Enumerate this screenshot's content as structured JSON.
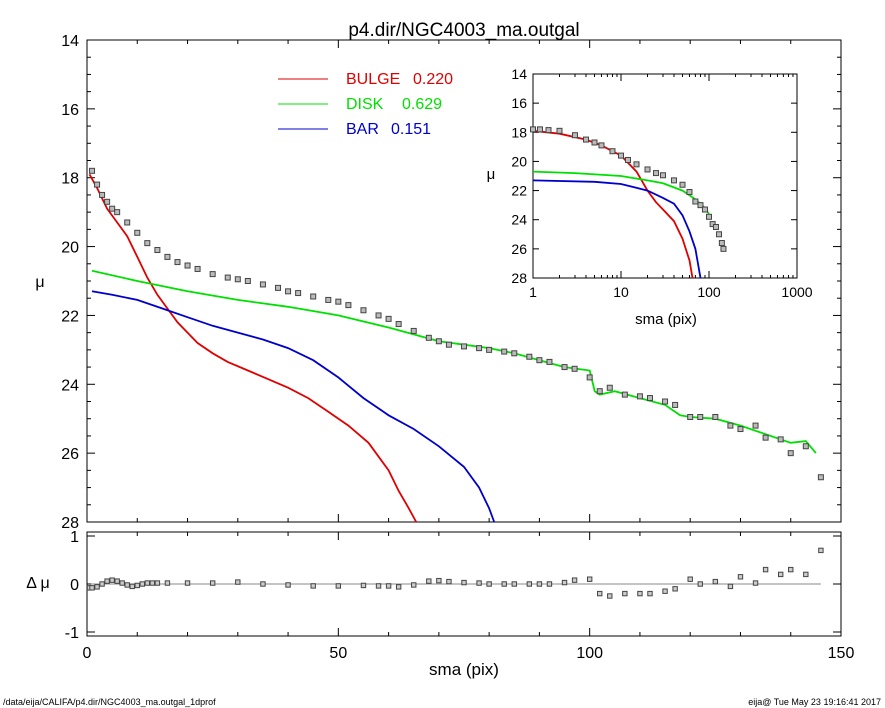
{
  "chart_data": [
    {
      "type": "line",
      "panel": "main",
      "title": "p4.dir/NGC4003_ma.outgal",
      "xlabel": "",
      "ylabel": "μ",
      "xlim": [
        0,
        150
      ],
      "ylim": [
        28,
        14
      ],
      "y_inverted": true,
      "yticks": [
        "14",
        "16",
        "18",
        "20",
        "22",
        "24",
        "26",
        "28"
      ],
      "legend": [
        {
          "name": "BULGE",
          "value": "0.220",
          "color": "#e00000"
        },
        {
          "name": "DISK",
          "value": "0.629",
          "color": "#00e000"
        },
        {
          "name": "BAR",
          "value": "0.151",
          "color": "#0000cc"
        }
      ],
      "series": [
        {
          "name": "BULGE",
          "color": "#e00000",
          "x": [
            0.5,
            2,
            4,
            6,
            8,
            10,
            12,
            14,
            16,
            18,
            20,
            22,
            25,
            28,
            32,
            36,
            40,
            44,
            48,
            52,
            56,
            60,
            62,
            64,
            65.5
          ],
          "y": [
            17.9,
            18.3,
            18.9,
            19.3,
            19.7,
            20.3,
            20.9,
            21.4,
            21.8,
            22.2,
            22.5,
            22.8,
            23.1,
            23.35,
            23.6,
            23.85,
            24.1,
            24.4,
            24.8,
            25.2,
            25.7,
            26.5,
            27.1,
            27.6,
            28.0
          ]
        },
        {
          "name": "DISK",
          "color": "#00e000",
          "x": [
            1,
            10,
            20,
            30,
            40,
            50,
            60,
            65,
            70,
            75,
            80,
            85,
            90,
            95,
            100,
            101,
            102,
            105,
            110,
            115,
            118,
            120,
            125,
            130,
            135,
            140,
            143,
            145
          ],
          "y": [
            20.7,
            21.0,
            21.3,
            21.55,
            21.75,
            22.0,
            22.35,
            22.55,
            22.75,
            22.85,
            22.95,
            23.1,
            23.3,
            23.5,
            23.6,
            24.2,
            24.3,
            24.2,
            24.4,
            24.6,
            24.9,
            24.95,
            25.0,
            25.2,
            25.45,
            25.7,
            25.65,
            26.0
          ]
        },
        {
          "name": "BAR",
          "color": "#0000cc",
          "x": [
            1,
            5,
            10,
            15,
            20,
            25,
            30,
            35,
            40,
            45,
            50,
            55,
            60,
            65,
            70,
            75,
            78,
            80,
            81
          ],
          "y": [
            21.3,
            21.4,
            21.55,
            21.8,
            22.05,
            22.3,
            22.5,
            22.7,
            22.95,
            23.3,
            23.8,
            24.4,
            24.9,
            25.3,
            25.8,
            26.4,
            27.0,
            27.6,
            28.0
          ]
        },
        {
          "name": "data",
          "style": "markers",
          "color": "#444444",
          "x": [
            1,
            2,
            3,
            4,
            5,
            6,
            8,
            10,
            12,
            14,
            16,
            18,
            20,
            22,
            25,
            28,
            30,
            32,
            35,
            38,
            40,
            42,
            45,
            48,
            50,
            52,
            55,
            58,
            60,
            62,
            65,
            68,
            70,
            72,
            75,
            78,
            80,
            83,
            85,
            88,
            90,
            92,
            95,
            97,
            100,
            102,
            104,
            107,
            110,
            112,
            115,
            117,
            120,
            122,
            125,
            128,
            130,
            133,
            135,
            138,
            140,
            143,
            146
          ],
          "y": [
            17.8,
            18.2,
            18.5,
            18.7,
            18.9,
            19.0,
            19.3,
            19.6,
            19.9,
            20.1,
            20.3,
            20.45,
            20.55,
            20.65,
            20.8,
            20.9,
            20.95,
            21.0,
            21.1,
            21.2,
            21.3,
            21.35,
            21.45,
            21.55,
            21.6,
            21.7,
            21.85,
            22.0,
            22.1,
            22.25,
            22.45,
            22.65,
            22.75,
            22.85,
            22.9,
            22.95,
            23.0,
            23.05,
            23.1,
            23.2,
            23.3,
            23.35,
            23.5,
            23.55,
            23.8,
            24.2,
            24.1,
            24.3,
            24.35,
            24.4,
            24.5,
            24.6,
            24.95,
            24.95,
            24.95,
            25.2,
            25.3,
            25.2,
            25.55,
            25.6,
            26.0,
            25.8,
            26.7
          ]
        }
      ]
    },
    {
      "type": "scatter",
      "panel": "residual",
      "xlabel": "sma (pix)",
      "ylabel": "Δ μ",
      "xlim": [
        0,
        150
      ],
      "ylim": [
        -1,
        1
      ],
      "xticks": [
        "0",
        "50",
        "100",
        "150"
      ],
      "yticks": [
        "-1",
        "0",
        "1"
      ],
      "series": [
        {
          "name": "residual",
          "color": "#444444",
          "x": [
            0.5,
            1,
            2,
            3,
            4,
            5,
            6,
            7,
            8,
            9,
            10,
            11,
            12,
            13,
            14,
            16,
            20,
            25,
            30,
            35,
            40,
            45,
            50,
            55,
            58,
            60,
            62,
            65,
            68,
            70,
            72,
            75,
            78,
            80,
            83,
            85,
            88,
            90,
            92,
            95,
            97,
            100,
            102,
            104,
            107,
            110,
            112,
            115,
            117,
            120,
            122,
            125,
            128,
            130,
            133,
            135,
            138,
            140,
            143,
            146
          ],
          "y": [
            -0.08,
            -0.08,
            -0.06,
            0.0,
            0.06,
            0.08,
            0.06,
            0.02,
            -0.02,
            -0.05,
            -0.03,
            0.0,
            0.02,
            0.02,
            0.02,
            0.02,
            0.02,
            0.02,
            0.04,
            0.0,
            -0.02,
            -0.04,
            -0.04,
            -0.03,
            -0.04,
            -0.04,
            -0.06,
            -0.02,
            0.06,
            0.07,
            0.05,
            0.03,
            0.02,
            0.0,
            0.0,
            0.0,
            0.0,
            0.0,
            0.0,
            0.03,
            0.08,
            0.1,
            -0.2,
            -0.25,
            -0.2,
            -0.2,
            -0.2,
            -0.15,
            -0.1,
            0.1,
            0.0,
            0.05,
            -0.05,
            0.15,
            0.02,
            0.3,
            0.2,
            0.3,
            0.2,
            0.7
          ]
        }
      ]
    },
    {
      "type": "line",
      "panel": "inset",
      "xlabel": "sma (pix)",
      "ylabel": "μ",
      "xscale": "log",
      "xlim": [
        1,
        1000
      ],
      "ylim": [
        28,
        14
      ],
      "xticks": [
        "1",
        "10",
        "100",
        "1000"
      ],
      "yticks": [
        "14",
        "16",
        "18",
        "20",
        "22",
        "24",
        "26",
        "28"
      ],
      "series": [
        {
          "name": "BULGE",
          "color": "#e00000",
          "x": [
            1,
            2,
            4,
            6,
            10,
            15,
            20,
            25,
            30,
            40,
            50,
            60,
            65
          ],
          "y": [
            17.9,
            18.1,
            18.5,
            18.9,
            19.6,
            20.7,
            22.0,
            22.8,
            23.3,
            24.1,
            25.3,
            26.8,
            28.0
          ]
        },
        {
          "name": "DISK",
          "color": "#00e000",
          "x": [
            1,
            3,
            10,
            20,
            30,
            50,
            70,
            90,
            100
          ],
          "y": [
            20.7,
            20.8,
            21.0,
            21.3,
            21.5,
            22.0,
            22.6,
            23.2,
            23.6
          ]
        },
        {
          "name": "BAR",
          "color": "#0000cc",
          "x": [
            1,
            5,
            10,
            20,
            30,
            40,
            50,
            60,
            70,
            80
          ],
          "y": [
            21.3,
            21.4,
            21.55,
            22.0,
            22.5,
            22.9,
            23.7,
            24.8,
            26.0,
            28.0
          ]
        },
        {
          "name": "data",
          "style": "markers",
          "color": "#444444",
          "x": [
            1,
            1.2,
            1.5,
            2,
            3,
            4,
            5,
            6,
            8,
            10,
            12,
            15,
            20,
            25,
            30,
            40,
            50,
            60,
            70,
            80,
            90,
            100,
            110,
            120,
            130,
            140,
            146
          ],
          "y": [
            17.8,
            17.8,
            17.85,
            17.9,
            18.2,
            18.5,
            18.7,
            18.9,
            19.3,
            19.6,
            19.9,
            20.2,
            20.55,
            20.8,
            20.95,
            21.3,
            21.6,
            22.1,
            22.75,
            23.0,
            23.3,
            23.8,
            24.3,
            24.5,
            25.0,
            25.6,
            26.0
          ]
        }
      ]
    }
  ],
  "footer": {
    "left": "/data/eija/CALIFA/p4.dir/NGC4003_ma.outgal_1dprof",
    "right": "eija@  Tue May 23 19:16:41 2017"
  }
}
